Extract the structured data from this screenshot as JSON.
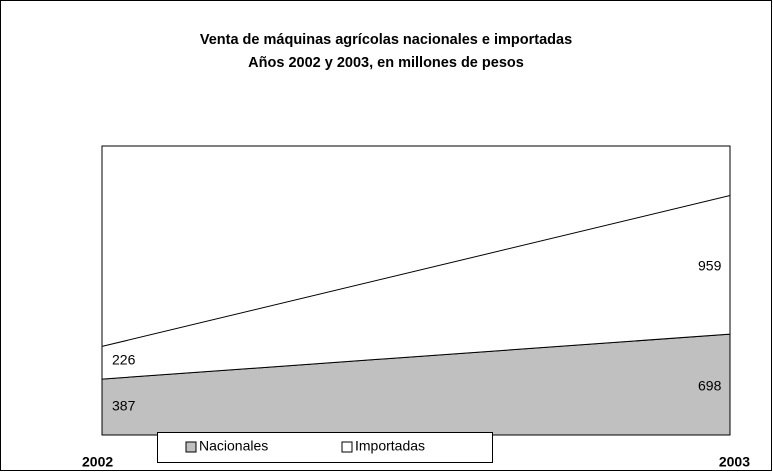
{
  "chart_data": {
    "type": "stacked_area",
    "title": "Venta de máquinas agrícolas nacionales e importadas",
    "subtitle": "Años 2002 y 2003, en millones de pesos",
    "categories": [
      "2002",
      "2003"
    ],
    "series": [
      {
        "name": "Nacionales",
        "color": "#c0c0c0",
        "values": [
          387,
          698
        ]
      },
      {
        "name": "Importadas",
        "color": "#ffffff",
        "values": [
          226,
          959
        ]
      }
    ],
    "ylim": [
      0,
      2000
    ],
    "legend": "bottom"
  }
}
